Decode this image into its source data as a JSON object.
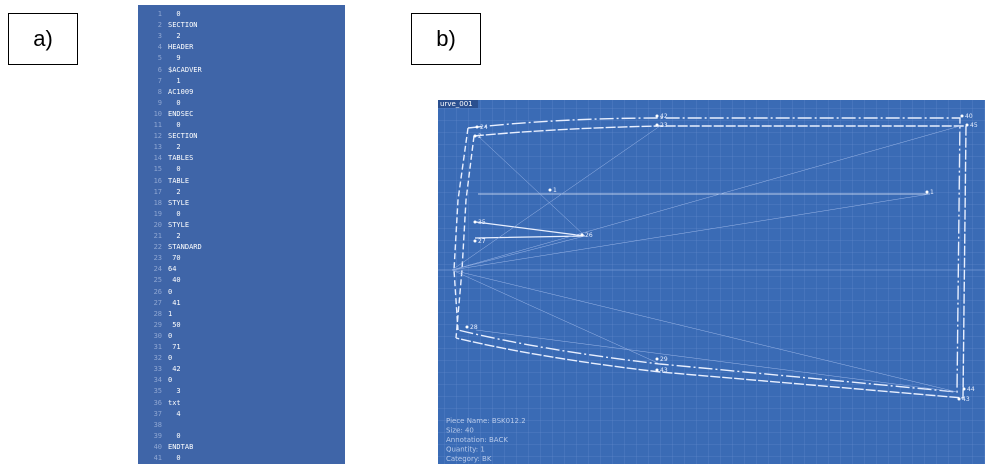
{
  "panels": {
    "a": {
      "label": "a)"
    },
    "b": {
      "label": "b)"
    }
  },
  "listing": {
    "lines": [
      {
        "n": 1,
        "text": "  0"
      },
      {
        "n": 2,
        "text": "SECTION"
      },
      {
        "n": 3,
        "text": "  2"
      },
      {
        "n": 4,
        "text": "HEADER"
      },
      {
        "n": 5,
        "text": "  9"
      },
      {
        "n": 6,
        "text": "$ACADVER"
      },
      {
        "n": 7,
        "text": "  1"
      },
      {
        "n": 8,
        "text": "AC1009"
      },
      {
        "n": 9,
        "text": "  0"
      },
      {
        "n": 10,
        "text": "ENDSEC"
      },
      {
        "n": 11,
        "text": "  0"
      },
      {
        "n": 12,
        "text": "SECTION"
      },
      {
        "n": 13,
        "text": "  2"
      },
      {
        "n": 14,
        "text": "TABLES"
      },
      {
        "n": 15,
        "text": "  0"
      },
      {
        "n": 16,
        "text": "TABLE"
      },
      {
        "n": 17,
        "text": "  2"
      },
      {
        "n": 18,
        "text": "STYLE"
      },
      {
        "n": 19,
        "text": "  0"
      },
      {
        "n": 20,
        "text": "STYLE"
      },
      {
        "n": 21,
        "text": "  2"
      },
      {
        "n": 22,
        "text": "STANDARD"
      },
      {
        "n": 23,
        "text": " 70"
      },
      {
        "n": 24,
        "text": "64"
      },
      {
        "n": 25,
        "text": " 40"
      },
      {
        "n": 26,
        "text": "0"
      },
      {
        "n": 27,
        "text": " 41"
      },
      {
        "n": 28,
        "text": "1"
      },
      {
        "n": 29,
        "text": " 50"
      },
      {
        "n": 30,
        "text": "0"
      },
      {
        "n": 31,
        "text": " 71"
      },
      {
        "n": 32,
        "text": "0"
      },
      {
        "n": 33,
        "text": " 42"
      },
      {
        "n": 34,
        "text": "0"
      },
      {
        "n": 35,
        "text": "  3"
      },
      {
        "n": 36,
        "text": "txt"
      },
      {
        "n": 37,
        "text": "  4"
      },
      {
        "n": 38,
        "text": null
      },
      {
        "n": 39,
        "text": "  0"
      },
      {
        "n": 40,
        "text": "ENDTAB"
      },
      {
        "n": 41,
        "text": "  0"
      }
    ]
  },
  "cad": {
    "title": "urve_001",
    "points": [
      "42",
      "23",
      "40",
      "45",
      "24",
      "2",
      "1",
      "1",
      "35",
      "27",
      "26",
      "28",
      "29",
      "43",
      "44",
      "43"
    ],
    "info": [
      "Piece Name: BSK012.2",
      "Size: 40",
      "Annotation: BACK",
      "Quantity: 1",
      "Category: BK"
    ]
  }
}
